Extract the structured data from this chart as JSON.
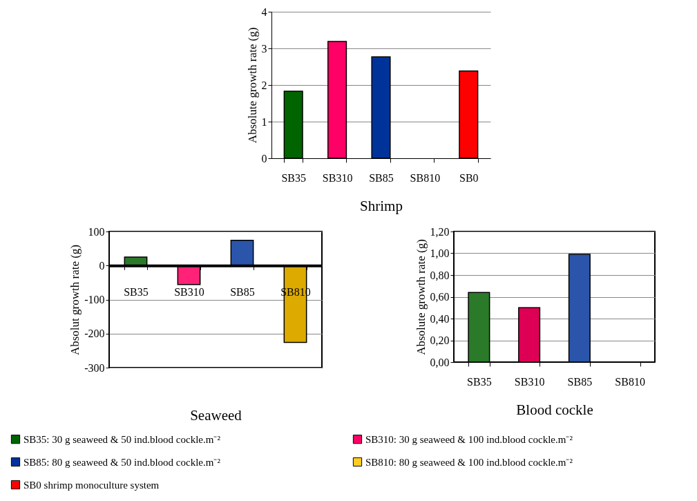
{
  "chart_data": [
    {
      "type": "bar",
      "xlabel": "Shrimp",
      "ylabel": "Absolute growth rate (g)",
      "categories": [
        "SB35",
        "SB310",
        "SB85",
        "SB810",
        "SB0"
      ],
      "ylim": [
        0,
        4
      ],
      "yticks": [
        0,
        1,
        2,
        3,
        4
      ],
      "grid": "y",
      "legend": "bottom",
      "series": [
        {
          "name": "SB35: 30 g seaweed & 50 ind.blood cockle.m⁻²",
          "color": "#006400",
          "values": [
            1.83,
            null,
            null,
            null,
            null
          ]
        },
        {
          "name": "SB310: 30 g seaweed & 100 ind.blood cockle.m⁻²",
          "color": "#ff0066",
          "values": [
            null,
            3.19,
            null,
            null,
            null
          ]
        },
        {
          "name": "SB85: 80 g seaweed & 50 ind.blood cockle.m⁻²",
          "color": "#003399",
          "values": [
            null,
            null,
            2.77,
            null,
            null
          ]
        },
        {
          "name": "SB810: 80 g seaweed & 100 ind.blood cockle.m⁻²",
          "color": "#ffcc22",
          "values": [
            null,
            null,
            null,
            null,
            null
          ]
        },
        {
          "name": "SB0 shrimp monoculture system",
          "color": "#ff0000",
          "values": [
            null,
            null,
            null,
            null,
            2.38
          ]
        }
      ]
    },
    {
      "type": "bar",
      "xlabel": "Seaweed",
      "ylabel": "Absolut growth rate (g)",
      "categories": [
        "SB35",
        "SB310",
        "SB85",
        "SB810"
      ],
      "ylim": [
        -300,
        100
      ],
      "yticks": [
        -300,
        -200,
        -100,
        0,
        100
      ],
      "grid": "y",
      "series": [
        {
          "color": "#2a7a2a",
          "values": [
            25,
            null,
            null,
            null
          ]
        },
        {
          "color": "#ff2277",
          "values": [
            null,
            -56,
            null,
            null
          ]
        },
        {
          "color": "#2a55aa",
          "values": [
            null,
            null,
            74,
            null
          ]
        },
        {
          "color": "#ddaa00",
          "values": [
            null,
            null,
            null,
            -226
          ]
        }
      ]
    },
    {
      "type": "bar",
      "xlabel": "Blood cockle",
      "ylabel": "Absolute growth rate (g)",
      "categories": [
        "SB35",
        "SB310",
        "SB85",
        "SB810"
      ],
      "ylim": [
        0,
        1.2
      ],
      "yticks": [
        {
          "value": 0,
          "label": "0,00"
        },
        {
          "value": 0.2,
          "label": "0,20"
        },
        {
          "value": 0.4,
          "label": "0,40"
        },
        {
          "value": 0.6,
          "label": "0,60"
        },
        {
          "value": 0.8,
          "label": "0,80"
        },
        {
          "value": 1,
          "label": "1,00"
        },
        {
          "value": 1.2,
          "label": "1,20"
        }
      ],
      "grid": "y",
      "series": [
        {
          "color": "#2a7a2a",
          "values": [
            0.64,
            null,
            null,
            null
          ]
        },
        {
          "color": "#dd0055",
          "values": [
            null,
            0.5,
            null,
            null
          ]
        },
        {
          "color": "#2a55aa",
          "values": [
            null,
            null,
            0.99,
            null
          ]
        },
        {
          "color": "#ffcc22",
          "values": [
            null,
            null,
            null,
            null
          ]
        }
      ]
    }
  ]
}
